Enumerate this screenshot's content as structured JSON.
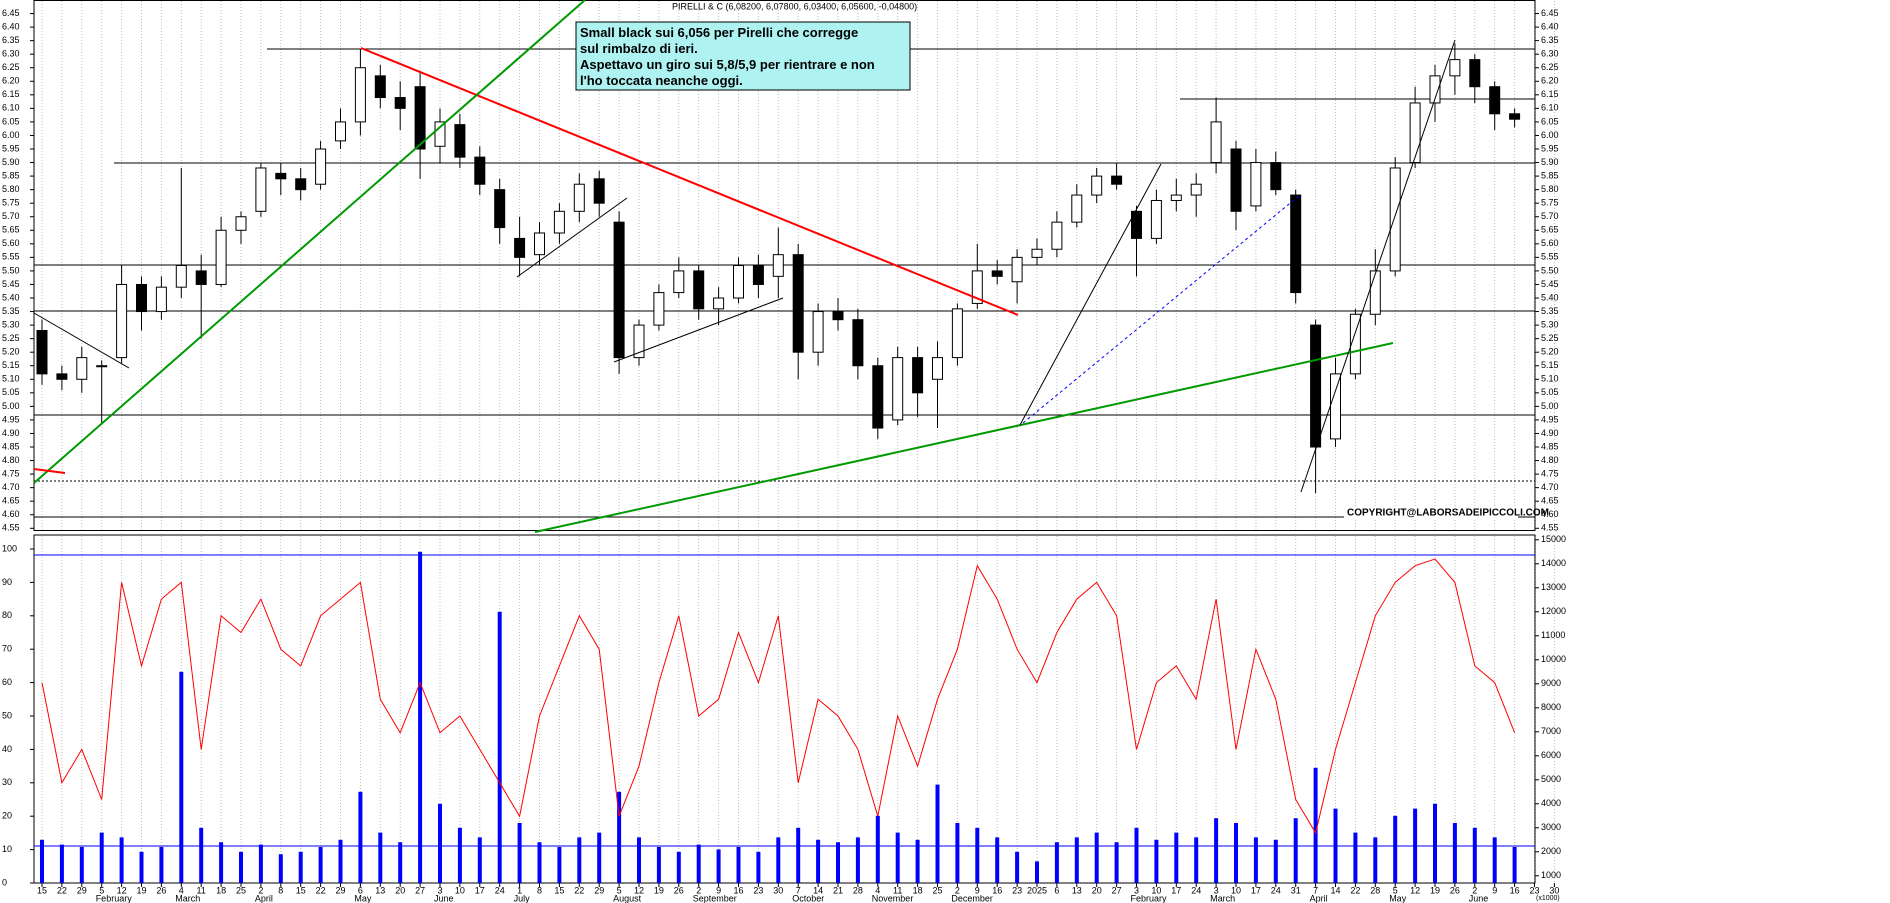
{
  "chart_data": {
    "type": "candlestick",
    "title": "PIRELLI & C (6,08200, 6,07800, 6,03400, 6,05600, -0,04800)",
    "annotation": [
      "Small black sui 6,056 per Pirelli che corregge",
      "sul rimbalzo di ieri.",
      "Aspettavo un giro sui 5,8/5,9 per rientrare e non",
      "l'ho toccata neanche oggi."
    ],
    "copyright": "COPYRIGHT@LABORSADEIPICCOLI.COM",
    "categories": [
      "15",
      "22",
      "29",
      "5",
      "12",
      "19",
      "26",
      "4",
      "11",
      "18",
      "25",
      "2",
      "8",
      "15",
      "22",
      "29",
      "6",
      "13",
      "20",
      "27",
      "3",
      "10",
      "17",
      "24",
      "1",
      "8",
      "15",
      "22",
      "29",
      "5",
      "12",
      "19",
      "26",
      "2",
      "9",
      "16",
      "23",
      "30",
      "7",
      "14",
      "21",
      "28",
      "4",
      "11",
      "18",
      "25",
      "2",
      "9",
      "16",
      "23",
      "2025",
      "6",
      "13",
      "20",
      "27",
      "3",
      "10",
      "17",
      "24",
      "3",
      "10",
      "17",
      "24",
      "31",
      "7",
      "14",
      "22",
      "28",
      "5",
      "12",
      "19",
      "26",
      "2",
      "9",
      "16",
      "23",
      "30"
    ],
    "months": [
      null,
      null,
      null,
      "February",
      null,
      null,
      null,
      "March",
      null,
      null,
      null,
      "April",
      null,
      null,
      null,
      null,
      "May",
      null,
      null,
      null,
      "June",
      null,
      null,
      null,
      "July",
      null,
      null,
      null,
      null,
      "August",
      null,
      null,
      null,
      "September",
      null,
      null,
      null,
      null,
      "October",
      null,
      null,
      null,
      "November",
      null,
      null,
      null,
      "December",
      null,
      null,
      null,
      null,
      null,
      null,
      null,
      null,
      "February",
      null,
      null,
      null,
      "March",
      null,
      null,
      null,
      null,
      "April",
      null,
      null,
      null,
      "May",
      null,
      null,
      null,
      "June",
      null,
      null,
      null,
      null
    ],
    "open": [
      5.28,
      5.12,
      5.1,
      5.15,
      5.18,
      5.45,
      5.35,
      5.44,
      5.5,
      5.45,
      5.65,
      5.72,
      5.86,
      5.84,
      5.82,
      5.98,
      6.05,
      6.22,
      6.14,
      6.18,
      5.96,
      6.04,
      5.92,
      5.8,
      5.62,
      5.56,
      5.64,
      5.72,
      5.84,
      5.68,
      5.18,
      5.3,
      5.42,
      5.5,
      5.36,
      5.4,
      5.52,
      5.48,
      5.56,
      5.2,
      5.35,
      5.32,
      5.15,
      4.95,
      5.18,
      5.1,
      5.18,
      5.38,
      5.5,
      5.46,
      5.55,
      5.58,
      5.68,
      5.78,
      5.85,
      5.72,
      5.62,
      5.76,
      5.78,
      5.9,
      5.95,
      5.74,
      5.9,
      5.78,
      5.3,
      4.88,
      5.12,
      5.34,
      5.5,
      5.9,
      6.12,
      6.22,
      6.28,
      6.18,
      6.08,
      null,
      null
    ],
    "high": [
      5.32,
      5.15,
      5.22,
      5.17,
      5.52,
      5.48,
      5.48,
      5.88,
      5.56,
      5.7,
      5.72,
      5.9,
      5.9,
      5.88,
      5.98,
      6.1,
      6.32,
      6.26,
      6.2,
      6.23,
      6.1,
      6.08,
      5.96,
      5.84,
      5.7,
      5.68,
      5.75,
      5.86,
      5.87,
      5.72,
      5.32,
      5.45,
      5.55,
      5.52,
      5.44,
      5.55,
      5.56,
      5.66,
      5.6,
      5.38,
      5.4,
      5.36,
      5.18,
      5.22,
      5.22,
      5.24,
      5.38,
      5.6,
      5.54,
      5.58,
      5.62,
      5.72,
      5.82,
      5.88,
      5.9,
      5.74,
      5.8,
      5.84,
      5.86,
      6.14,
      5.98,
      5.95,
      5.94,
      5.8,
      5.32,
      5.18,
      5.36,
      5.58,
      5.92,
      6.18,
      6.26,
      6.34,
      6.3,
      6.2,
      6.1,
      null,
      null
    ],
    "low": [
      5.08,
      5.06,
      5.05,
      4.94,
      5.16,
      5.28,
      5.32,
      5.4,
      5.25,
      5.44,
      5.6,
      5.7,
      5.78,
      5.76,
      5.8,
      5.95,
      6.0,
      6.1,
      6.02,
      5.84,
      5.9,
      5.88,
      5.78,
      5.6,
      5.48,
      5.52,
      5.6,
      5.68,
      5.7,
      5.12,
      5.15,
      5.28,
      5.4,
      5.32,
      5.3,
      5.38,
      5.4,
      5.4,
      5.1,
      5.15,
      5.28,
      5.1,
      4.88,
      4.93,
      4.96,
      4.92,
      5.15,
      5.36,
      5.45,
      5.38,
      5.52,
      5.55,
      5.66,
      5.75,
      5.8,
      5.48,
      5.6,
      5.72,
      5.7,
      5.86,
      5.65,
      5.72,
      5.78,
      5.38,
      4.68,
      4.85,
      5.1,
      5.3,
      5.48,
      5.88,
      6.05,
      6.15,
      6.12,
      6.02,
      6.03,
      null,
      null
    ],
    "close": [
      5.12,
      5.1,
      5.18,
      5.15,
      5.45,
      5.35,
      5.44,
      5.52,
      5.45,
      5.65,
      5.7,
      5.88,
      5.84,
      5.8,
      5.95,
      6.05,
      6.25,
      6.14,
      6.1,
      5.95,
      6.05,
      5.92,
      5.82,
      5.66,
      5.55,
      5.64,
      5.72,
      5.82,
      5.75,
      5.18,
      5.3,
      5.42,
      5.5,
      5.36,
      5.4,
      5.52,
      5.45,
      5.56,
      5.2,
      5.35,
      5.32,
      5.15,
      4.92,
      5.18,
      5.05,
      5.18,
      5.36,
      5.5,
      5.48,
      5.55,
      5.58,
      5.68,
      5.78,
      5.85,
      5.82,
      5.62,
      5.76,
      5.78,
      5.82,
      6.05,
      5.72,
      5.9,
      5.8,
      5.42,
      4.85,
      5.12,
      5.34,
      5.5,
      5.88,
      6.12,
      6.22,
      6.28,
      6.18,
      6.08,
      6.06,
      null,
      null
    ],
    "up_color": "#ffffff",
    "down_color": "#000000",
    "ylim": [
      4.54,
      6.5
    ],
    "yticks": [
      4.55,
      {
        "value": 4.6,
        "label": "4.60"
      },
      4.65,
      {
        "value": 4.7,
        "label": "4.70"
      },
      4.75,
      {
        "value": 4.8,
        "label": "4.80"
      },
      4.85,
      {
        "value": 4.9,
        "label": "4.90"
      },
      4.95,
      {
        "value": 5,
        "label": "5.00"
      },
      5.05,
      {
        "value": 5.1,
        "label": "5.10"
      },
      5.15,
      {
        "value": 5.2,
        "label": "5.20"
      },
      5.25,
      {
        "value": 5.3,
        "label": "5.30"
      },
      5.35,
      {
        "value": 5.4,
        "label": "5.40"
      },
      5.45,
      {
        "value": 5.5,
        "label": "5.50"
      },
      5.55,
      {
        "value": 5.6,
        "label": "5.60"
      },
      5.65,
      {
        "value": 5.7,
        "label": "5.70"
      },
      5.75,
      {
        "value": 5.8,
        "label": "5.80"
      },
      5.85,
      {
        "value": 5.9,
        "label": "5.90"
      },
      5.95,
      {
        "value": 6,
        "label": "6.00"
      },
      6.05,
      {
        "value": 6.1,
        "label": "6.10"
      },
      6.15,
      {
        "value": 6.2,
        "label": "6.20"
      },
      6.25,
      {
        "value": 6.3,
        "label": "6.30"
      },
      6.35,
      {
        "value": 6.4,
        "label": "6.40"
      },
      6.45
    ],
    "grid": true,
    "oscillator": {
      "color": "#ff0000",
      "values": [
        60,
        30,
        40,
        25,
        90,
        65,
        85,
        90,
        40,
        80,
        75,
        85,
        70,
        65,
        80,
        85,
        90,
        55,
        45,
        60,
        45,
        50,
        40,
        30,
        20,
        50,
        65,
        80,
        70,
        20,
        35,
        60,
        80,
        50,
        55,
        75,
        60,
        80,
        30,
        55,
        50,
        40,
        20,
        50,
        35,
        55,
        70,
        95,
        85,
        70,
        60,
        75,
        85,
        90,
        80,
        40,
        60,
        65,
        55,
        85,
        40,
        70,
        55,
        25,
        15,
        40,
        60,
        80,
        90,
        95,
        97,
        90,
        65,
        60,
        45,
        null,
        null
      ],
      "ylim": [
        0,
        100
      ],
      "yticks": [
        0,
        10,
        20,
        30,
        40,
        50,
        60,
        70,
        80,
        90,
        100
      ]
    },
    "volume": {
      "color": "#0000ff",
      "values": [
        2500,
        2300,
        2200,
        2800,
        2600,
        2000,
        2200,
        9500,
        3000,
        2400,
        2000,
        2300,
        1900,
        2000,
        2200,
        2500,
        4500,
        2800,
        2400,
        14500,
        4000,
        3000,
        2600,
        12000,
        3200,
        2400,
        2200,
        2600,
        2800,
        4500,
        2600,
        2200,
        2000,
        2300,
        2100,
        2200,
        2000,
        2600,
        3000,
        2500,
        2400,
        2600,
        3500,
        2800,
        2500,
        4800,
        3200,
        3000,
        2600,
        2000,
        1600,
        2400,
        2600,
        2800,
        2400,
        3000,
        2500,
        2800,
        2600,
        3400,
        3200,
        2600,
        2500,
        3400,
        5500,
        3800,
        2800,
        2600,
        3500,
        3800,
        4000,
        3200,
        3000,
        2600,
        2200,
        null,
        null
      ],
      "ylim": [
        700,
        15200
      ],
      "yticks": [
        1000,
        2000,
        3000,
        4000,
        5000,
        6000,
        7000,
        8000,
        9000,
        10000,
        11000,
        12000,
        13000,
        14000,
        15000
      ],
      "unit_label": "(x1000)"
    }
  }
}
